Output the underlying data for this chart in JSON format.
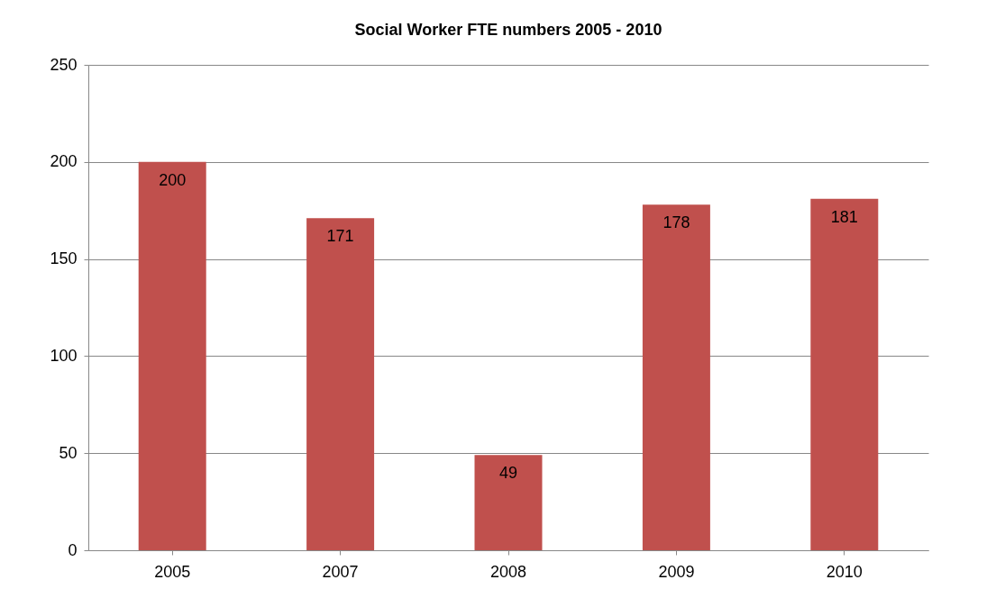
{
  "chart_data": {
    "type": "bar",
    "title": "Social Worker FTE numbers 2005 - 2010",
    "categories": [
      "2005",
      "2007",
      "2008",
      "2009",
      "2010"
    ],
    "values": [
      200,
      171,
      49,
      178,
      181
    ],
    "color": "#c0504d",
    "ylim": [
      0,
      250
    ],
    "yticks": [
      0,
      50,
      100,
      150,
      200,
      250
    ],
    "grid": "y",
    "data_labels": true
  }
}
